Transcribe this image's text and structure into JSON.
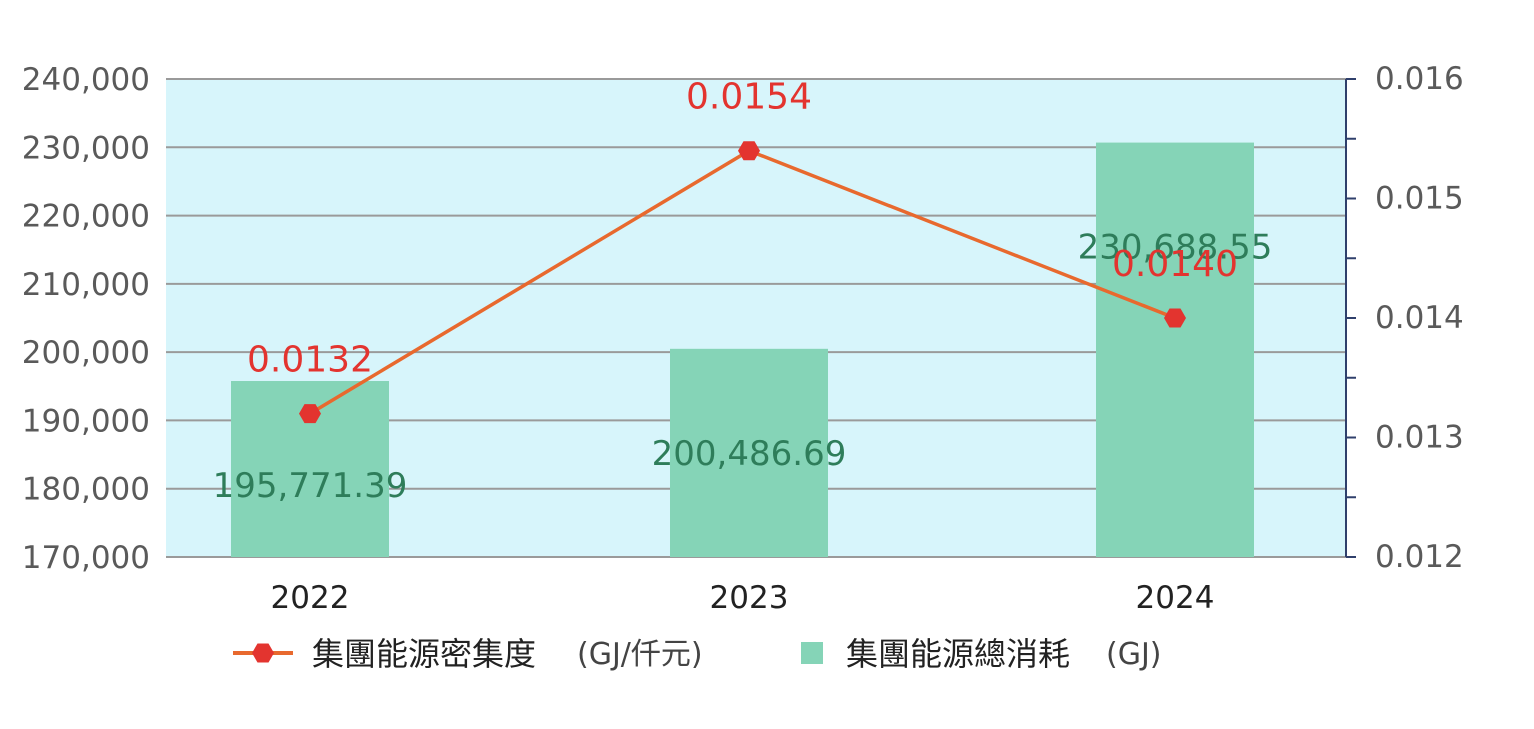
{
  "chart_data": {
    "type": "bar",
    "categories": [
      "2022",
      "2023",
      "2024"
    ],
    "series": [
      {
        "name": "集團能源總消耗",
        "unit": "(GJ)",
        "type": "bar",
        "axis": "left",
        "values": [
          195771.39,
          200486.69,
          230688.55
        ],
        "labels": [
          "195,771.39",
          "200,486.69",
          "230,688.55"
        ],
        "color": "#85d4b7"
      },
      {
        "name": "集團能源密集度",
        "unit": "(GJ/仟元)",
        "type": "line",
        "axis": "right",
        "values": [
          0.0132,
          0.0154,
          0.014
        ],
        "labels": [
          "0.0132",
          "0.0154",
          "0.0140"
        ],
        "color": "#e8692e",
        "marker_color": "#e3342f"
      }
    ],
    "y_left": {
      "ylim": [
        170000,
        240000
      ],
      "ticks": [
        170000,
        180000,
        190000,
        200000,
        210000,
        220000,
        230000,
        240000
      ],
      "tick_labels": [
        "170,000",
        "180,000",
        "190,000",
        "200,000",
        "210,000",
        "220,000",
        "230,000",
        "240,000"
      ]
    },
    "y_right": {
      "ylim": [
        0.012,
        0.016
      ],
      "ticks": [
        0.012,
        0.013,
        0.014,
        0.015,
        0.016
      ],
      "tick_labels": [
        "0.012",
        "0.013",
        "0.014",
        "0.015",
        "0.016"
      ]
    },
    "grid": true,
    "legend_position": "bottom",
    "plot_background": "#d7f5fb",
    "grid_color": "#9a9a9a",
    "axis_color": "#2f3f6b"
  }
}
